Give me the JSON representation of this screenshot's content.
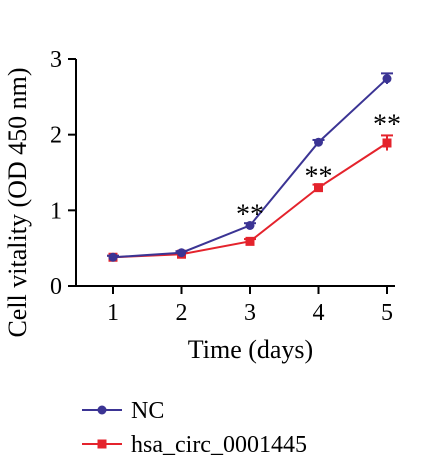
{
  "chart_data": {
    "type": "line",
    "title": "",
    "xlabel": "Time (days)",
    "ylabel": "Cell vitality (OD 450 nm)",
    "x": [
      1,
      2,
      3,
      4,
      5
    ],
    "xticks": [
      "1",
      "2",
      "3",
      "4",
      "5"
    ],
    "xlim": [
      1,
      5
    ],
    "ylim": [
      0,
      3
    ],
    "yticks": [
      "0",
      "1",
      "2",
      "3"
    ],
    "grid": false,
    "legend_position": "bottom-left",
    "series": [
      {
        "name": "NC",
        "values": [
          0.38,
          0.44,
          0.8,
          1.9,
          2.74
        ],
        "error": [
          0.02,
          0.02,
          0.03,
          0.03,
          0.07
        ],
        "color": "#3b3494",
        "marker": "circle"
      },
      {
        "name": "hsa_circ_0001445",
        "values": [
          0.38,
          0.42,
          0.59,
          1.3,
          1.89
        ],
        "error": [
          0.02,
          0.02,
          0.03,
          0.04,
          0.1
        ],
        "color": "#e4232c",
        "marker": "square"
      }
    ],
    "annotations": [
      {
        "x": 3,
        "y": 0.8,
        "text": "**"
      },
      {
        "x": 4,
        "y": 1.3,
        "text": "**"
      },
      {
        "x": 5,
        "y": 1.99,
        "text": "**"
      }
    ]
  }
}
